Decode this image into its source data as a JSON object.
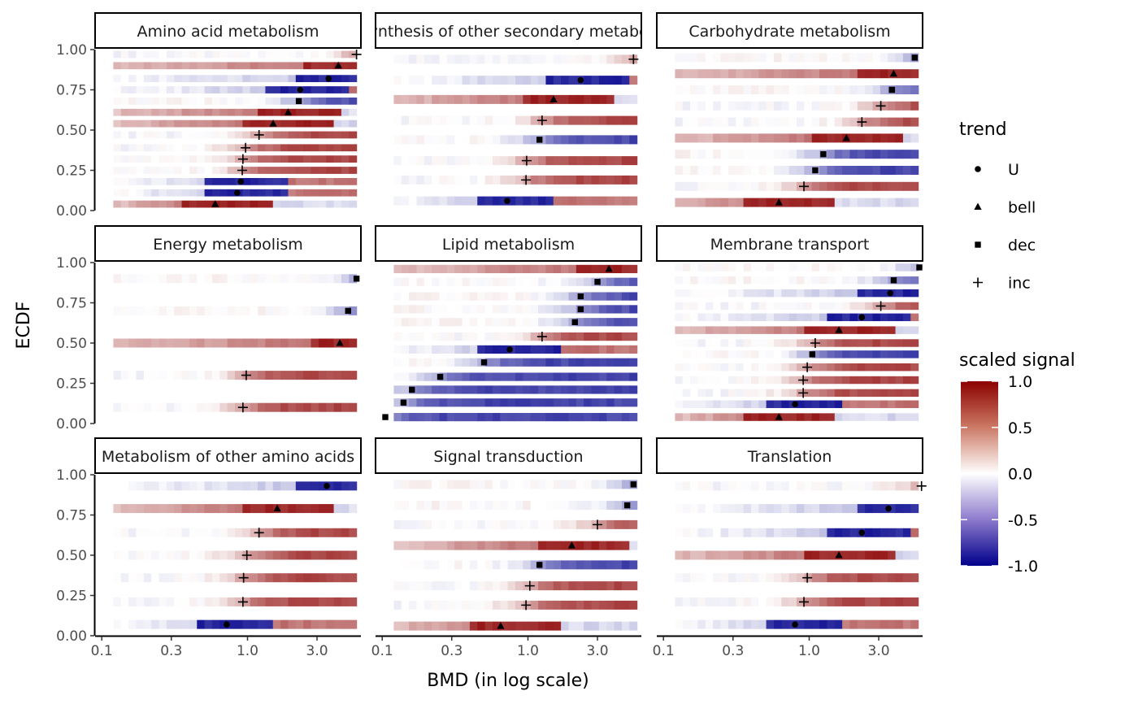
{
  "chart_data": {
    "type": "heatmap",
    "xlabel": "BMD (in log scale)",
    "ylabel": "ECDF",
    "x_scale": "log10",
    "xlim": [
      0.09,
      6.0
    ],
    "ylim": [
      0,
      1
    ],
    "x_ticks": [
      0.1,
      0.3,
      1.0,
      3.0
    ],
    "x_tick_labels": [
      "0.1",
      "0.3",
      "1.0",
      "3.0"
    ],
    "y_ticks": [
      0,
      0.25,
      0.5,
      0.75,
      1.0
    ],
    "y_tick_labels": [
      "0.00",
      "0.25",
      "0.50",
      "0.75",
      "1.00"
    ],
    "legend_trend": {
      "title": "trend",
      "entries": [
        {
          "label": "U",
          "shape": "circle"
        },
        {
          "label": "bell",
          "shape": "triangle"
        },
        {
          "label": "dec",
          "shape": "square"
        },
        {
          "label": "inc",
          "shape": "plus"
        }
      ]
    },
    "legend_signal": {
      "title": "scaled signal",
      "colors": {
        "low": "#00008b",
        "mid": "#ffffff",
        "high": "#8b0000"
      },
      "range": [
        -1.0,
        1.0
      ],
      "ticks": [
        1.0,
        0.5,
        0.0,
        -0.5,
        -1.0
      ],
      "tick_labels": [
        "1.0",
        "0.5",
        "0.0",
        "-0.5",
        "-1.0"
      ]
    },
    "panels": [
      {
        "title": "Amino acid metabolism",
        "items": [
          {
            "bmd": 5.6,
            "y": 0.97,
            "trend": "inc"
          },
          {
            "bmd": 4.2,
            "y": 0.9,
            "trend": "bell"
          },
          {
            "bmd": 3.6,
            "y": 0.82,
            "trend": "U"
          },
          {
            "bmd": 2.3,
            "y": 0.75,
            "trend": "U"
          },
          {
            "bmd": 2.25,
            "y": 0.68,
            "trend": "dec"
          },
          {
            "bmd": 1.9,
            "y": 0.61,
            "trend": "bell"
          },
          {
            "bmd": 1.5,
            "y": 0.54,
            "trend": "bell"
          },
          {
            "bmd": 1.2,
            "y": 0.47,
            "trend": "inc"
          },
          {
            "bmd": 0.97,
            "y": 0.39,
            "trend": "inc"
          },
          {
            "bmd": 0.93,
            "y": 0.32,
            "trend": "inc"
          },
          {
            "bmd": 0.92,
            "y": 0.25,
            "trend": "inc"
          },
          {
            "bmd": 0.9,
            "y": 0.18,
            "trend": "U"
          },
          {
            "bmd": 0.85,
            "y": 0.11,
            "trend": "U"
          },
          {
            "bmd": 0.6,
            "y": 0.04,
            "trend": "bell"
          }
        ]
      },
      {
        "title": "Biosynthesis of other secondary metabolites",
        "items": [
          {
            "bmd": 5.3,
            "y": 0.94,
            "trend": "inc"
          },
          {
            "bmd": 2.3,
            "y": 0.81,
            "trend": "U"
          },
          {
            "bmd": 1.5,
            "y": 0.69,
            "trend": "bell"
          },
          {
            "bmd": 1.25,
            "y": 0.56,
            "trend": "inc"
          },
          {
            "bmd": 1.2,
            "y": 0.44,
            "trend": "dec"
          },
          {
            "bmd": 0.98,
            "y": 0.31,
            "trend": "inc"
          },
          {
            "bmd": 0.97,
            "y": 0.19,
            "trend": "inc"
          },
          {
            "bmd": 0.72,
            "y": 0.06,
            "trend": "U"
          }
        ]
      },
      {
        "title": "Carbohydrate metabolism",
        "items": [
          {
            "bmd": 5.3,
            "y": 0.95,
            "trend": "dec"
          },
          {
            "bmd": 3.8,
            "y": 0.85,
            "trend": "bell"
          },
          {
            "bmd": 3.7,
            "y": 0.75,
            "trend": "dec"
          },
          {
            "bmd": 3.7,
            "y": 0.75,
            "trend": "dec"
          },
          {
            "bmd": 3.1,
            "y": 0.65,
            "trend": "inc"
          },
          {
            "bmd": 2.3,
            "y": 0.55,
            "trend": "inc"
          },
          {
            "bmd": 1.8,
            "y": 0.45,
            "trend": "bell"
          },
          {
            "bmd": 1.25,
            "y": 0.35,
            "trend": "dec"
          },
          {
            "bmd": 1.1,
            "y": 0.25,
            "trend": "dec"
          },
          {
            "bmd": 0.92,
            "y": 0.15,
            "trend": "inc"
          },
          {
            "bmd": 0.62,
            "y": 0.05,
            "trend": "bell"
          }
        ]
      },
      {
        "title": "Energy metabolism",
        "items": [
          {
            "bmd": 5.6,
            "y": 0.9,
            "trend": "dec"
          },
          {
            "bmd": 4.9,
            "y": 0.7,
            "trend": "dec"
          },
          {
            "bmd": 4.3,
            "y": 0.5,
            "trend": "bell"
          },
          {
            "bmd": 0.98,
            "y": 0.3,
            "trend": "inc"
          },
          {
            "bmd": 0.93,
            "y": 0.1,
            "trend": "inc"
          }
        ]
      },
      {
        "title": "Lipid metabolism",
        "items": [
          {
            "bmd": 3.6,
            "y": 0.96,
            "trend": "bell"
          },
          {
            "bmd": 3.0,
            "y": 0.88,
            "trend": "dec"
          },
          {
            "bmd": 2.3,
            "y": 0.79,
            "trend": "dec"
          },
          {
            "bmd": 2.3,
            "y": 0.71,
            "trend": "dec"
          },
          {
            "bmd": 2.1,
            "y": 0.63,
            "trend": "dec"
          },
          {
            "bmd": 1.25,
            "y": 0.54,
            "trend": "inc"
          },
          {
            "bmd": 0.75,
            "y": 0.46,
            "trend": "U"
          },
          {
            "bmd": 0.5,
            "y": 0.38,
            "trend": "dec"
          },
          {
            "bmd": 0.25,
            "y": 0.29,
            "trend": "dec"
          },
          {
            "bmd": 0.16,
            "y": 0.21,
            "trend": "dec"
          },
          {
            "bmd": 0.14,
            "y": 0.13,
            "trend": "dec"
          },
          {
            "bmd": 0.105,
            "y": 0.04,
            "trend": "dec"
          }
        ]
      },
      {
        "title": "Membrane transport",
        "items": [
          {
            "bmd": 5.7,
            "y": 0.97,
            "trend": "dec"
          },
          {
            "bmd": 3.8,
            "y": 0.89,
            "trend": "dec"
          },
          {
            "bmd": 3.6,
            "y": 0.81,
            "trend": "U"
          },
          {
            "bmd": 3.1,
            "y": 0.73,
            "trend": "inc"
          },
          {
            "bmd": 2.3,
            "y": 0.66,
            "trend": "U"
          },
          {
            "bmd": 1.6,
            "y": 0.58,
            "trend": "bell"
          },
          {
            "bmd": 1.1,
            "y": 0.5,
            "trend": "inc"
          },
          {
            "bmd": 1.05,
            "y": 0.43,
            "trend": "dec"
          },
          {
            "bmd": 0.97,
            "y": 0.35,
            "trend": "inc"
          },
          {
            "bmd": 0.91,
            "y": 0.27,
            "trend": "inc"
          },
          {
            "bmd": 0.91,
            "y": 0.19,
            "trend": "inc"
          },
          {
            "bmd": 0.8,
            "y": 0.12,
            "trend": "U"
          },
          {
            "bmd": 0.62,
            "y": 0.04,
            "trend": "bell"
          }
        ]
      },
      {
        "title": "Metabolism of other amino acids",
        "items": [
          {
            "bmd": 3.5,
            "y": 0.93,
            "trend": "U"
          },
          {
            "bmd": 1.6,
            "y": 0.79,
            "trend": "bell"
          },
          {
            "bmd": 1.2,
            "y": 0.64,
            "trend": "inc"
          },
          {
            "bmd": 0.99,
            "y": 0.5,
            "trend": "inc"
          },
          {
            "bmd": 0.94,
            "y": 0.36,
            "trend": "inc"
          },
          {
            "bmd": 0.93,
            "y": 0.21,
            "trend": "inc"
          },
          {
            "bmd": 0.72,
            "y": 0.07,
            "trend": "U"
          }
        ]
      },
      {
        "title": "Signal transduction",
        "items": [
          {
            "bmd": 5.3,
            "y": 0.94,
            "trend": "dec"
          },
          {
            "bmd": 4.8,
            "y": 0.81,
            "trend": "dec"
          },
          {
            "bmd": 3.0,
            "y": 0.69,
            "trend": "inc"
          },
          {
            "bmd": 2.0,
            "y": 0.56,
            "trend": "bell"
          },
          {
            "bmd": 1.2,
            "y": 0.44,
            "trend": "dec"
          },
          {
            "bmd": 1.03,
            "y": 0.31,
            "trend": "inc"
          },
          {
            "bmd": 0.97,
            "y": 0.19,
            "trend": "inc"
          },
          {
            "bmd": 0.65,
            "y": 0.06,
            "trend": "bell"
          }
        ]
      },
      {
        "title": "Translation",
        "items": [
          {
            "bmd": 5.9,
            "y": 0.93,
            "trend": "inc"
          },
          {
            "bmd": 3.5,
            "y": 0.79,
            "trend": "U"
          },
          {
            "bmd": 2.3,
            "y": 0.64,
            "trend": "U"
          },
          {
            "bmd": 1.6,
            "y": 0.5,
            "trend": "bell"
          },
          {
            "bmd": 0.97,
            "y": 0.36,
            "trend": "inc"
          },
          {
            "bmd": 0.92,
            "y": 0.21,
            "trend": "inc"
          },
          {
            "bmd": 0.8,
            "y": 0.07,
            "trend": "U"
          }
        ]
      }
    ]
  }
}
